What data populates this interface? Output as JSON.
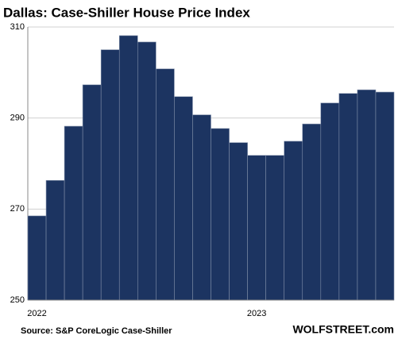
{
  "chart_data": {
    "type": "bar",
    "title": "Dallas: Case-Shiller House Price Index",
    "categories": [
      "2022",
      null,
      null,
      null,
      null,
      null,
      null,
      null,
      null,
      null,
      null,
      null,
      "2023",
      null,
      null,
      null,
      null,
      null,
      null,
      null
    ],
    "values": [
      268.5,
      276.3,
      288.2,
      297.3,
      305.0,
      308.1,
      306.7,
      300.8,
      294.7,
      290.7,
      287.7,
      284.6,
      281.8,
      281.8,
      284.9,
      288.7,
      293.3,
      295.4,
      296.2,
      295.7
    ],
    "color": "#1c3461",
    "ylim": [
      250,
      310
    ],
    "yticks": [
      250,
      270,
      290,
      310
    ],
    "grid": true,
    "source": "Source: S&P CoreLogic Case-Shiller",
    "credit": "WOLFSTREET.com"
  }
}
